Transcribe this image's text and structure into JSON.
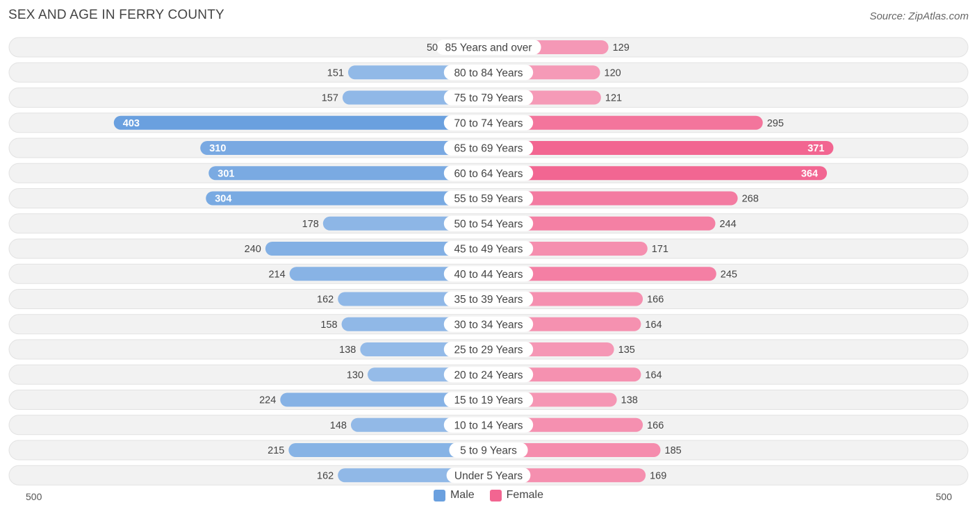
{
  "title": "SEX AND AGE IN FERRY COUNTY",
  "source": "Source: ZipAtlas.com",
  "colors": {
    "male_light": "#a9c8ec",
    "male_strong": "#6aa0df",
    "female_light": "#f7b3c9",
    "female_strong": "#f26591",
    "row_bg": "#f2f2f2",
    "row_border": "#e2e2e2"
  },
  "legend": {
    "male": "Male",
    "female": "Female"
  },
  "axis": {
    "left_label": "500",
    "right_label": "500"
  },
  "chart_data": {
    "type": "bar",
    "orientation": "horizontal-diverging",
    "title": "SEX AND AGE IN FERRY COUNTY",
    "xlim": [
      -500,
      500
    ],
    "categories": [
      "85 Years and over",
      "80 to 84 Years",
      "75 to 79 Years",
      "70 to 74 Years",
      "65 to 69 Years",
      "60 to 64 Years",
      "55 to 59 Years",
      "50 to 54 Years",
      "45 to 49 Years",
      "40 to 44 Years",
      "35 to 39 Years",
      "30 to 34 Years",
      "25 to 29 Years",
      "20 to 24 Years",
      "15 to 19 Years",
      "10 to 14 Years",
      "5 to 9 Years",
      "Under 5 Years"
    ],
    "series": [
      {
        "name": "Male",
        "values": [
          50,
          151,
          157,
          403,
          310,
          301,
          304,
          178,
          240,
          214,
          162,
          158,
          138,
          130,
          224,
          148,
          215,
          162
        ]
      },
      {
        "name": "Female",
        "values": [
          129,
          120,
          121,
          295,
          371,
          364,
          268,
          244,
          171,
          245,
          166,
          164,
          135,
          164,
          138,
          166,
          185,
          169
        ]
      }
    ],
    "legend_position": "bottom-center",
    "grid": false
  }
}
